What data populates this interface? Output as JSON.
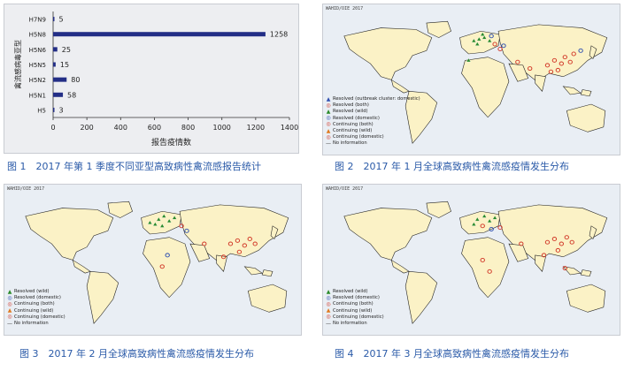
{
  "figure1": {
    "caption": "图 1　2017 年第 1 季度不同亚型高致病性禽流感报告统计",
    "chart_data": {
      "type": "bar",
      "orientation": "horizontal",
      "categories": [
        "H7N9",
        "H5N8",
        "H5N6",
        "H5N5",
        "H5N2",
        "H5N1",
        "H5"
      ],
      "values": [
        5,
        1258,
        25,
        15,
        80,
        58,
        3
      ],
      "value_labels": [
        "5",
        "1258",
        "25",
        "15",
        "80",
        "58",
        "3"
      ],
      "xlabel": "报告疫情数",
      "ylabel": "禽流感病毒亚型",
      "xticks": [
        "0",
        "200",
        "400",
        "600",
        "800",
        "1000",
        "1200",
        "1400"
      ],
      "xlim": [
        0,
        1400
      ],
      "bar_color": "#232e86"
    }
  },
  "figure2": {
    "caption": "图 2　2017 年 1 月全球高致病性禽流感疫情发生分布",
    "map_header": "WAHID/OIE 2017",
    "legend": [
      {
        "icon": "triangle-icon",
        "color": "#2f4fb0",
        "label": "Resolved (outbreak cluster: domestic)"
      },
      {
        "icon": "circle-icon",
        "color": "#d23a2a",
        "label": "Resolved (both)"
      },
      {
        "icon": "triangle-icon",
        "color": "#2a8a2a",
        "label": "Resolved (wild)"
      },
      {
        "icon": "circle-icon",
        "color": "#2f4fb0",
        "label": "Resolved (domestic)"
      },
      {
        "icon": "circle-icon",
        "color": "#d23a2a",
        "label": "Continuing (both)"
      },
      {
        "icon": "triangle-icon",
        "color": "#e07a20",
        "label": "Continuing (wild)"
      },
      {
        "icon": "circle-icon",
        "color": "#d23a2a",
        "label": "Continuing (domestic)"
      },
      {
        "icon": "line-icon",
        "color": "#444444",
        "label": "No information"
      }
    ]
  },
  "figure3": {
    "caption": "图 3　2017 年 2 月全球高致病性禽流感疫情发生分布",
    "map_header": "WAHID/OIE 2017",
    "legend": [
      {
        "icon": "triangle-icon",
        "color": "#2a8a2a",
        "label": "Resolved (wild)"
      },
      {
        "icon": "circle-icon",
        "color": "#2f4fb0",
        "label": "Resolved (domestic)"
      },
      {
        "icon": "circle-icon",
        "color": "#d23a2a",
        "label": "Continuing (both)"
      },
      {
        "icon": "triangle-icon",
        "color": "#e07a20",
        "label": "Continuing (wild)"
      },
      {
        "icon": "circle-icon",
        "color": "#d23a2a",
        "label": "Continuing (domestic)"
      },
      {
        "icon": "line-icon",
        "color": "#444444",
        "label": "No information"
      }
    ]
  },
  "figure4": {
    "caption": "图 4　2017 年 3 月全球高致病性禽流感疫情发生分布",
    "map_header": "WAHID/OIE 2017",
    "legend": [
      {
        "icon": "triangle-icon",
        "color": "#2a8a2a",
        "label": "Resolved (wild)"
      },
      {
        "icon": "circle-icon",
        "color": "#2f4fb0",
        "label": "Resolved (domestic)"
      },
      {
        "icon": "circle-icon",
        "color": "#d23a2a",
        "label": "Continuing (both)"
      },
      {
        "icon": "triangle-icon",
        "color": "#e07a20",
        "label": "Continuing (wild)"
      },
      {
        "icon": "circle-icon",
        "color": "#d23a2a",
        "label": "Continuing (domestic)"
      },
      {
        "icon": "line-icon",
        "color": "#444444",
        "label": "No information"
      }
    ]
  }
}
